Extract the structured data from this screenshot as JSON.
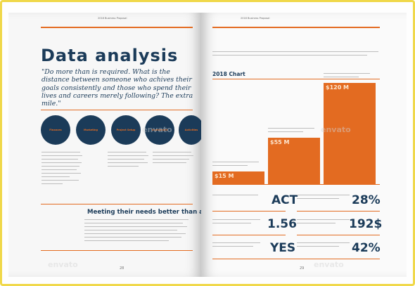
{
  "header": {
    "running_title": "2018 Business Proposal"
  },
  "left_page": {
    "title": "Data analysis",
    "quote": "\"Do more than is required. What is the distance between someone who achives their goals consistently and those who spend their lives and careers merely following? The extra mile.\"",
    "circles": [
      "Finances",
      "Marketing",
      "Project Setup",
      "Investment",
      "Activities"
    ],
    "section_title": "Meeting their needs better than anyone",
    "page_number": "28"
  },
  "right_page": {
    "chart_title": "2018 Chart",
    "page_number": "29",
    "stats": [
      "ACT",
      "1.56",
      "YES",
      "28%",
      "192$",
      "42%"
    ]
  },
  "chart_data": {
    "type": "bar",
    "title": "2018 Chart",
    "categories": [
      "",
      "",
      ""
    ],
    "values": [
      15,
      55,
      120
    ],
    "data_labels": [
      "$15 M",
      "$55 M",
      "$120 M"
    ],
    "ylim": [
      0,
      120
    ]
  },
  "colors": {
    "accent": "#e36b21",
    "navy": "#1b3b59",
    "frame": "#f0d84a"
  },
  "watermark": "envato"
}
